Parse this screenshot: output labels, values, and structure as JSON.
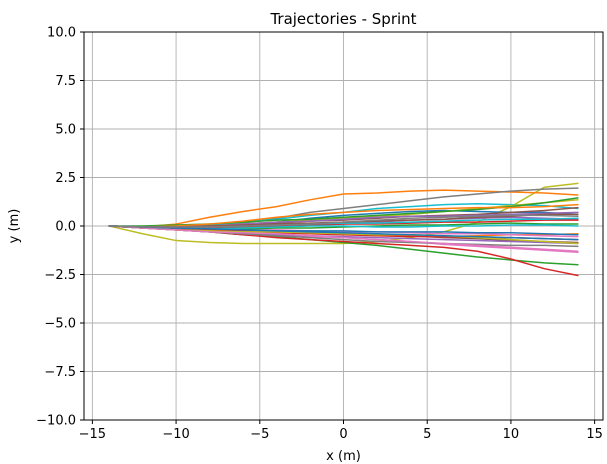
{
  "chart_data": {
    "type": "line",
    "title": "Trajectories - Sprint",
    "xlabel": "x (m)",
    "ylabel": "y (m)",
    "xlim": [
      -15.5,
      15.5
    ],
    "ylim": [
      -10.0,
      10.0
    ],
    "grid": true,
    "xticks": [
      -15,
      -10,
      -5,
      0,
      5,
      10,
      15
    ],
    "xtick_labels": [
      "−15",
      "−10",
      "−5",
      "0",
      "5",
      "10",
      "15"
    ],
    "yticks": [
      10.0,
      7.5,
      5.0,
      2.5,
      0.0,
      -2.5,
      -5.0,
      -7.5,
      -10.0
    ],
    "ytick_labels": [
      "10.0",
      "7.5",
      "5.0",
      "2.5",
      "0.0",
      "−2.5",
      "−5.0",
      "−7.5",
      "−10.0"
    ],
    "x": [
      -14,
      -12,
      -10,
      -8,
      -6,
      -4,
      -2,
      0,
      2,
      4,
      6,
      8,
      10,
      12,
      14
    ],
    "series": [
      {
        "color": "#bcbd22",
        "values": [
          0.0,
          -0.4,
          -0.75,
          -0.85,
          -0.9,
          -0.9,
          -0.9,
          -0.9,
          -0.8,
          -0.6,
          -0.3,
          0.2,
          1.0,
          2.0,
          2.2
        ]
      },
      {
        "color": "#ff7f0e",
        "values": [
          0.0,
          -0.05,
          0.1,
          0.45,
          0.75,
          1.0,
          1.35,
          1.65,
          1.7,
          1.8,
          1.85,
          1.8,
          1.75,
          1.7,
          1.6
        ]
      },
      {
        "color": "#7f7f7f",
        "values": [
          0.0,
          -0.1,
          -0.1,
          0.0,
          0.15,
          0.4,
          0.7,
          0.9,
          1.1,
          1.3,
          1.5,
          1.65,
          1.8,
          1.9,
          1.95
        ]
      },
      {
        "color": "#2ca02c",
        "values": [
          0.0,
          -0.1,
          -0.2,
          -0.3,
          -0.45,
          -0.55,
          -0.7,
          -0.85,
          -1.0,
          -1.2,
          -1.4,
          -1.6,
          -1.75,
          -1.9,
          -2.0
        ]
      },
      {
        "color": "#d62728",
        "values": [
          0.0,
          -0.1,
          -0.2,
          -0.3,
          -0.45,
          -0.6,
          -0.7,
          -0.8,
          -0.9,
          -1.0,
          -1.1,
          -1.3,
          -1.7,
          -2.2,
          -2.55
        ]
      },
      {
        "color": "#17becf",
        "values": [
          0.0,
          -0.05,
          -0.05,
          0.05,
          0.2,
          0.35,
          0.55,
          0.7,
          0.9,
          1.0,
          1.1,
          1.15,
          1.1,
          1.05,
          0.9
        ]
      },
      {
        "color": "#1f77b4",
        "values": [
          0.0,
          -0.05,
          -0.1,
          -0.05,
          0.05,
          0.2,
          0.4,
          0.55,
          0.65,
          0.75,
          0.8,
          0.75,
          0.7,
          0.7,
          0.6
        ]
      },
      {
        "color": "#9467bd",
        "values": [
          0.0,
          -0.1,
          -0.15,
          -0.15,
          -0.1,
          -0.05,
          0.05,
          0.1,
          0.2,
          0.3,
          0.35,
          0.4,
          0.45,
          0.4,
          0.35
        ]
      },
      {
        "color": "#8c564b",
        "values": [
          0.0,
          -0.05,
          -0.15,
          -0.2,
          -0.25,
          -0.3,
          -0.35,
          -0.4,
          -0.45,
          -0.5,
          -0.6,
          -0.65,
          -0.75,
          -0.8,
          -0.85
        ]
      },
      {
        "color": "#e377c2",
        "values": [
          0.0,
          -0.1,
          -0.2,
          -0.3,
          -0.4,
          -0.5,
          -0.55,
          -0.6,
          -0.7,
          -0.8,
          -0.95,
          -1.05,
          -1.15,
          -1.25,
          -1.35
        ]
      },
      {
        "color": "#bcbd22",
        "values": [
          0.0,
          -0.05,
          -0.05,
          0.0,
          0.1,
          0.2,
          0.3,
          0.4,
          0.5,
          0.6,
          0.75,
          0.9,
          1.05,
          1.2,
          1.35
        ]
      },
      {
        "color": "#ff7f0e",
        "values": [
          0.0,
          -0.1,
          -0.2,
          -0.25,
          -0.3,
          -0.35,
          -0.35,
          -0.4,
          -0.45,
          -0.5,
          -0.55,
          -0.5,
          -0.45,
          -0.45,
          -0.4
        ]
      },
      {
        "color": "#2ca02c",
        "values": [
          0.0,
          0.0,
          0.05,
          0.1,
          0.2,
          0.3,
          0.35,
          0.45,
          0.55,
          0.65,
          0.75,
          0.85,
          1.0,
          1.2,
          1.45
        ]
      },
      {
        "color": "#d62728",
        "values": [
          0.0,
          -0.05,
          -0.1,
          -0.1,
          -0.05,
          0.0,
          0.05,
          0.1,
          0.1,
          0.15,
          0.2,
          0.2,
          0.25,
          0.3,
          0.3
        ]
      },
      {
        "color": "#9467bd",
        "values": [
          0.0,
          -0.1,
          -0.15,
          -0.25,
          -0.35,
          -0.45,
          -0.5,
          -0.55,
          -0.6,
          -0.65,
          -0.7,
          -0.75,
          -0.8,
          -0.85,
          -0.9
        ]
      },
      {
        "color": "#8c564b",
        "values": [
          0.0,
          -0.05,
          -0.05,
          0.0,
          0.05,
          0.15,
          0.25,
          0.3,
          0.4,
          0.5,
          0.55,
          0.6,
          0.7,
          0.8,
          0.95
        ]
      },
      {
        "color": "#e377c2",
        "values": [
          0.0,
          -0.05,
          -0.1,
          -0.15,
          -0.2,
          -0.2,
          -0.25,
          -0.3,
          -0.3,
          -0.35,
          -0.4,
          -0.4,
          -0.45,
          -0.5,
          -0.55
        ]
      },
      {
        "color": "#7f7f7f",
        "values": [
          0.0,
          -0.1,
          -0.2,
          -0.3,
          -0.4,
          -0.5,
          -0.6,
          -0.7,
          -0.8,
          -0.85,
          -0.9,
          -0.95,
          -1.0,
          -1.0,
          -1.05
        ]
      },
      {
        "color": "#17becf",
        "values": [
          0.0,
          -0.05,
          -0.05,
          -0.05,
          0.0,
          0.05,
          0.1,
          0.15,
          0.15,
          0.2,
          0.25,
          0.3,
          0.35,
          0.35,
          0.4
        ]
      },
      {
        "color": "#1f77b4",
        "values": [
          0.0,
          -0.05,
          -0.15,
          -0.2,
          -0.2,
          -0.25,
          -0.25,
          -0.25,
          -0.3,
          -0.3,
          -0.3,
          -0.35,
          -0.35,
          -0.4,
          -0.45
        ]
      },
      {
        "color": "#ff7f0e",
        "values": [
          0.0,
          -0.05,
          0.0,
          0.1,
          0.25,
          0.45,
          0.6,
          0.7,
          0.8,
          0.85,
          0.9,
          0.95,
          0.95,
          1.0,
          1.1
        ]
      },
      {
        "color": "#2ca02c",
        "values": [
          0.0,
          -0.1,
          -0.15,
          -0.15,
          -0.15,
          -0.1,
          -0.1,
          -0.05,
          0.0,
          0.05,
          0.05,
          0.1,
          0.15,
          0.1,
          0.1
        ]
      },
      {
        "color": "#d62728",
        "values": [
          0.0,
          -0.1,
          -0.15,
          -0.2,
          -0.25,
          -0.35,
          -0.4,
          -0.45,
          -0.5,
          -0.55,
          -0.55,
          -0.6,
          -0.6,
          -0.65,
          -0.7
        ]
      },
      {
        "color": "#9467bd",
        "values": [
          0.0,
          -0.05,
          -0.05,
          0.0,
          0.1,
          0.2,
          0.25,
          0.35,
          0.45,
          0.5,
          0.5,
          0.55,
          0.6,
          0.65,
          0.7
        ]
      },
      {
        "color": "#bcbd22",
        "values": [
          0.0,
          -0.1,
          -0.2,
          -0.25,
          -0.3,
          -0.3,
          -0.35,
          -0.4,
          -0.45,
          -0.45,
          -0.5,
          -0.6,
          -0.7,
          -0.8,
          -0.9
        ]
      },
      {
        "color": "#e377c2",
        "values": [
          0.0,
          -0.1,
          -0.2,
          -0.3,
          -0.35,
          -0.4,
          -0.5,
          -0.6,
          -0.7,
          -0.8,
          -0.9,
          -1.0,
          -1.1,
          -1.2,
          -1.3
        ]
      },
      {
        "color": "#17becf",
        "values": [
          0.0,
          -0.05,
          -0.1,
          -0.15,
          -0.1,
          -0.05,
          0.0,
          0.0,
          -0.05,
          -0.05,
          0.0,
          0.0,
          0.05,
          0.05,
          0.0
        ]
      },
      {
        "color": "#8c564b",
        "values": [
          0.0,
          -0.05,
          -0.05,
          0.0,
          0.05,
          0.1,
          0.15,
          0.2,
          0.25,
          0.3,
          0.35,
          0.45,
          0.5,
          0.6,
          0.6
        ]
      },
      {
        "color": "#1f77b4",
        "values": [
          0.0,
          -0.05,
          -0.1,
          -0.15,
          -0.2,
          -0.25,
          -0.3,
          -0.35,
          -0.4,
          -0.45,
          -0.5,
          -0.55,
          -0.6,
          -0.65,
          -0.7
        ]
      },
      {
        "color": "#7f7f7f",
        "values": [
          0.0,
          -0.05,
          -0.05,
          -0.05,
          0.0,
          0.05,
          0.1,
          0.2,
          0.3,
          0.4,
          0.45,
          0.5,
          0.55,
          0.55,
          0.5
        ]
      }
    ]
  }
}
